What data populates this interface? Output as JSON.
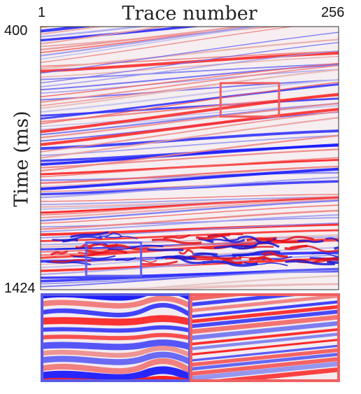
{
  "chart_data": {
    "type": "heatmap",
    "title": "",
    "xlabel": "Trace number",
    "ylabel": "Time (ms)",
    "x_tick_labels": [
      "1",
      "256"
    ],
    "y_tick_labels": [
      "400",
      "1424"
    ],
    "xlim": [
      1,
      256
    ],
    "ylim": [
      400,
      1424
    ],
    "colormap": [
      "#0000ff",
      "#ffffff",
      "#ff0000"
    ],
    "highlight_boxes": [
      {
        "name": "red-box",
        "color": "#f06060",
        "trace_range": [
          155,
          205
        ],
        "time_range": [
          620,
          750
        ]
      },
      {
        "name": "blue-box",
        "color": "#6060f0",
        "trace_range": [
          40,
          87
        ],
        "time_range": [
          1240,
          1370
        ]
      }
    ],
    "zoom_panels": [
      {
        "name": "blue-zoom",
        "color": "#5a5ae6",
        "source": "blue-box"
      },
      {
        "name": "red-zoom",
        "color": "#f06060",
        "source": "red-box"
      }
    ]
  }
}
